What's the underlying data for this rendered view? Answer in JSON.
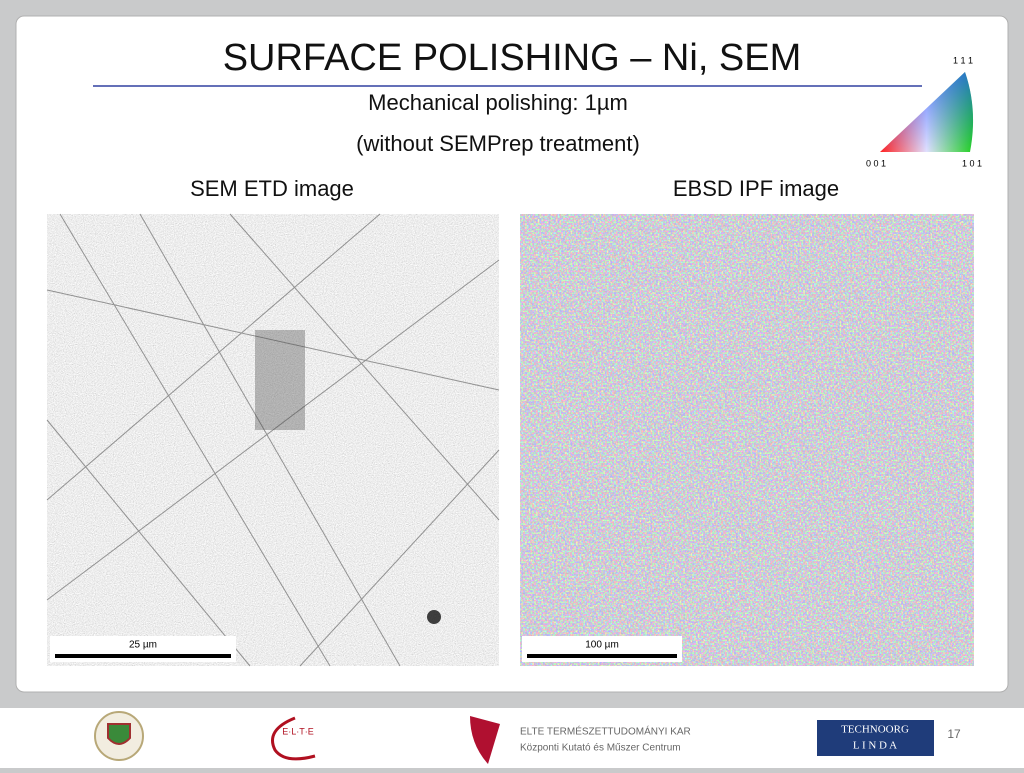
{
  "header": {
    "title": "SURFACE POLISHING – Ni, SEM",
    "subtitle_1": "Mechanical polishing: 1µm",
    "subtitle_2": "(without SEMPrep treatment)"
  },
  "panels": [
    {
      "label": "SEM ETD image",
      "scale_bar": "25 µm"
    },
    {
      "label": "EBSD IPF image",
      "scale_bar": "100 µm"
    }
  ],
  "ipf_legend": {
    "top": "1 1 1",
    "left": "0 0 1",
    "right": "1 0 1"
  },
  "footer": {
    "elte_logo": "E·L·T·E",
    "faculty": "ELTE TERMÉSZETTUDOMÁNYI KAR",
    "centre": "Központi Kutató és Műszer Centrum",
    "technoorg": "TECHNOORG",
    "linda": "L I N D A",
    "page_number": "17"
  }
}
